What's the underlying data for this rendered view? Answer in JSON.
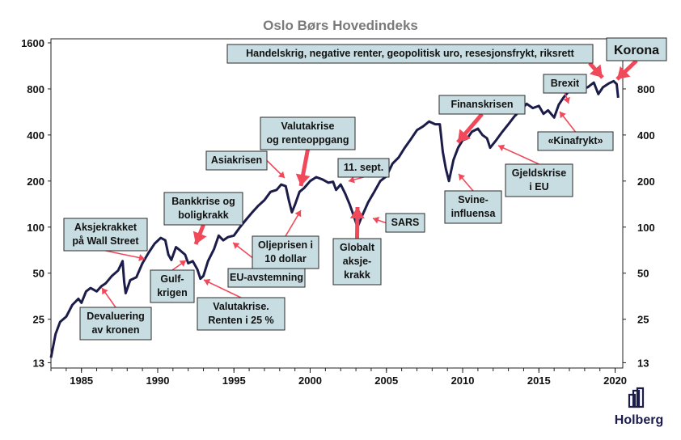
{
  "chart_data": {
    "type": "line",
    "title": "Oslo Børs Hovedindeks",
    "scale": "log",
    "ylim": [
      12,
      1700
    ],
    "xlim": [
      1983,
      2020.5
    ],
    "y_ticks": [
      13,
      25,
      50,
      100,
      200,
      400,
      800,
      1600
    ],
    "y_ticks_right": [
      13,
      25,
      50,
      100,
      200,
      400,
      800
    ],
    "x_ticks": [
      1985,
      1990,
      1995,
      2000,
      2005,
      2010,
      2015,
      2020
    ],
    "line_color": "#1c1c4a",
    "arrow_color": "#f04a5a",
    "series": [
      {
        "x": [
          1983.0,
          1983.3,
          1983.6,
          1984.0,
          1984.4,
          1984.8,
          1985.0,
          1985.3,
          1985.6,
          1986.0,
          1986.3,
          1986.6,
          1987.0,
          1987.4,
          1987.7,
          1987.8,
          1987.9,
          1988.2,
          1988.6,
          1989.0,
          1989.4,
          1989.8,
          1990.2,
          1990.5,
          1990.7,
          1990.9,
          1991.2,
          1991.5,
          1991.8,
          1992.0,
          1992.3,
          1992.6,
          1992.8,
          1993.0,
          1993.3,
          1993.7,
          1994.0,
          1994.3,
          1994.6,
          1995.0,
          1995.4,
          1995.8,
          1996.2,
          1996.6,
          1997.0,
          1997.4,
          1997.8,
          1998.1,
          1998.4,
          1998.6,
          1998.8,
          1999.0,
          1999.3,
          1999.6,
          2000.0,
          2000.4,
          2000.8,
          2001.2,
          2001.5,
          2001.7,
          2002.0,
          2002.3,
          2002.6,
          2002.9,
          2003.1,
          2003.4,
          2003.8,
          2004.2,
          2004.6,
          2005.0,
          2005.4,
          2005.8,
          2006.2,
          2006.6,
          2007.0,
          2007.4,
          2007.8,
          2008.2,
          2008.5,
          2008.7,
          2008.9,
          2009.1,
          2009.4,
          2009.7,
          2010.0,
          2010.3,
          2010.6,
          2011.0,
          2011.3,
          2011.6,
          2011.8,
          2012.2,
          2012.6,
          2013.0,
          2013.4,
          2013.8,
          2014.2,
          2014.6,
          2015.0,
          2015.3,
          2015.6,
          2016.0,
          2016.3,
          2016.6,
          2017.0,
          2017.4,
          2017.8,
          2018.2,
          2018.6,
          2018.9,
          2019.2,
          2019.6,
          2019.9,
          2020.1,
          2020.2
        ],
        "y": [
          14,
          20,
          24,
          26,
          31,
          34,
          32,
          38,
          40,
          38,
          41,
          43,
          48,
          52,
          60,
          44,
          37,
          45,
          47,
          58,
          68,
          78,
          85,
          82,
          66,
          61,
          74,
          70,
          66,
          58,
          60,
          53,
          46,
          48,
          60,
          72,
          88,
          82,
          86,
          88,
          100,
          112,
          125,
          138,
          150,
          170,
          175,
          190,
          185,
          150,
          125,
          140,
          170,
          180,
          200,
          212,
          205,
          195,
          198,
          175,
          190,
          165,
          140,
          115,
          100,
          118,
          145,
          170,
          200,
          215,
          260,
          285,
          330,
          375,
          430,
          455,
          490,
          470,
          470,
          310,
          240,
          200,
          275,
          330,
          370,
          380,
          420,
          440,
          400,
          380,
          330,
          370,
          420,
          470,
          530,
          580,
          640,
          600,
          620,
          550,
          580,
          520,
          630,
          700,
          780,
          760,
          800,
          820,
          880,
          740,
          820,
          870,
          900,
          860,
          700
        ]
      }
    ],
    "annotations": [
      {
        "text": "Aksjekrakket\npå Wall Street",
        "x": 1987.9,
        "y": 60
      },
      {
        "text": "Devaluering\nav kronen",
        "x": 1986.3,
        "y": 40
      },
      {
        "text": "Bankkrise og\nboligkrakk",
        "x": 1992.2,
        "y": 60
      },
      {
        "text": "Gulf-\nkrigen",
        "x": 1990.8,
        "y": 60
      },
      {
        "text": "Valutakrise.\nRenten i 25 %",
        "x": 1992.9,
        "y": 46
      },
      {
        "text": "EU-avstemning",
        "x": 1994.7,
        "y": 60
      },
      {
        "text": "Asiakrisen",
        "x": 1998.1,
        "y": 190
      },
      {
        "text": "Valutakrise\nog renteoppgang",
        "x": 1998.8,
        "y": 150
      },
      {
        "text": "Oljeprisen i\n10 dollar",
        "x": 1999.0,
        "y": 125
      },
      {
        "text": "11. sept.",
        "x": 2001.7,
        "y": 175
      },
      {
        "text": "Globalt\naksje-\nkrakk",
        "x": 2002.6,
        "y": 140
      },
      {
        "text": "SARS",
        "x": 2003.1,
        "y": 100
      },
      {
        "text": "Finanskrisen",
        "x": 2009.0,
        "y": 240
      },
      {
        "text": "Svine-\ninfluensa",
        "x": 2009.3,
        "y": 200
      },
      {
        "text": "Gjeldskrise\ni EU",
        "x": 2011.6,
        "y": 330
      },
      {
        "text": "Brexit",
        "x": 2016.6,
        "y": 580
      },
      {
        "text": "«Kinafrykt»",
        "x": 2016.0,
        "y": 520
      },
      {
        "text": "Handelskrig, negative renter, geopolitisk uro, resesjonsfrykt, riksrett",
        "x": 2019.2,
        "y": 870
      },
      {
        "text": "Korona",
        "x": 2020.2,
        "y": 700
      }
    ]
  },
  "logo": {
    "text": "Holberg"
  }
}
